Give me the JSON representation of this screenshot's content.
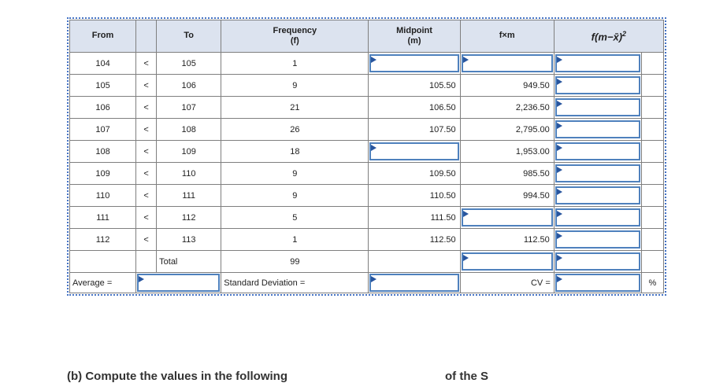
{
  "header": {
    "from": "From",
    "to": "To",
    "frequency": "Frequency",
    "frequency_unit": "(f)",
    "midpoint": "Midpoint",
    "midpoint_unit": "(m)",
    "fxm": "f×m",
    "fmx_base": "f(m−x̄)",
    "fmx_sup": "2"
  },
  "rows": [
    {
      "from": "104",
      "cmp": "<",
      "to": "105",
      "f": "1",
      "m": null,
      "fm": null
    },
    {
      "from": "105",
      "cmp": "<",
      "to": "106",
      "f": "9",
      "m": "105.50",
      "fm": "949.50"
    },
    {
      "from": "106",
      "cmp": "<",
      "to": "107",
      "f": "21",
      "m": "106.50",
      "fm": "2,236.50"
    },
    {
      "from": "107",
      "cmp": "<",
      "to": "108",
      "f": "26",
      "m": "107.50",
      "fm": "2,795.00"
    },
    {
      "from": "108",
      "cmp": "<",
      "to": "109",
      "f": "18",
      "m": null,
      "fm": "1,953.00"
    },
    {
      "from": "109",
      "cmp": "<",
      "to": "110",
      "f": "9",
      "m": "109.50",
      "fm": "985.50"
    },
    {
      "from": "110",
      "cmp": "<",
      "to": "111",
      "f": "9",
      "m": "110.50",
      "fm": "994.50"
    },
    {
      "from": "111",
      "cmp": "<",
      "to": "112",
      "f": "5",
      "m": "111.50",
      "fm": null
    },
    {
      "from": "112",
      "cmp": "<",
      "to": "113",
      "f": "1",
      "m": "112.50",
      "fm": "112.50"
    }
  ],
  "total_row": {
    "label": "Total",
    "f": "99"
  },
  "footer": {
    "average_label": "Average =",
    "stddev_label": "Standard Deviation =",
    "cv_label": "CV =",
    "percent": "%"
  },
  "partial_text": {
    "left": "(b) Compute the values in the following",
    "right": "of the S"
  },
  "colors": {
    "header_bg": "#dce3ef",
    "grid": "#7f7f7f",
    "input_border": "#4f81bd",
    "flag": "#28559e",
    "selection_ants": "#4472c4"
  }
}
